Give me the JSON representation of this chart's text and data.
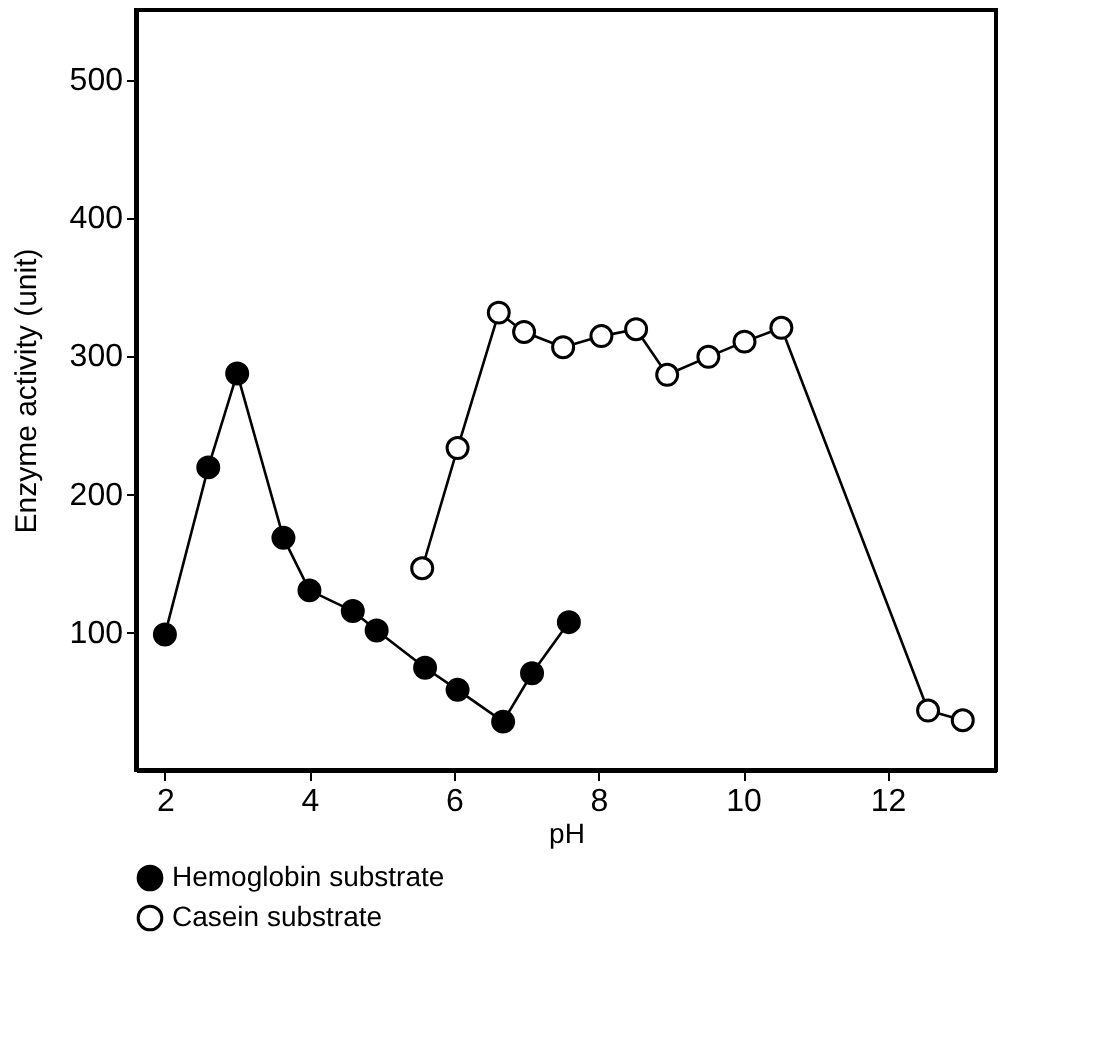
{
  "chart_data": {
    "type": "line",
    "xlabel": "pH",
    "ylabel": "Enzyme activity (unit)",
    "xlim": [
      1.6,
      13.5
    ],
    "xticks": [
      2,
      4,
      6,
      8,
      10,
      12
    ],
    "ylim": [
      0,
      550
    ],
    "yticks": [
      100,
      200,
      300,
      400,
      500
    ],
    "grid": false,
    "legend": "bottom",
    "marker": "circle",
    "line_style": "solid",
    "series": [
      {
        "name": "Hemoglobin substrate",
        "color": "#000000",
        "x": [
          2.0,
          2.6,
          3.0,
          3.64,
          4.0,
          4.6,
          4.93,
          5.6,
          6.05,
          6.68,
          7.08,
          7.59
        ],
        "values": [
          98,
          219,
          287,
          168,
          130,
          115,
          101,
          74,
          58,
          35,
          70,
          107
        ]
      },
      {
        "name": "Casein substrate",
        "color": "#000000",
        "x": [
          5.56,
          6.05,
          6.62,
          6.97,
          7.51,
          8.04,
          8.52,
          8.95,
          9.52,
          10.02,
          10.53,
          12.56,
          13.04
        ],
        "values": [
          146,
          233,
          331,
          317,
          306,
          314,
          319,
          286,
          299,
          310,
          320,
          43,
          36
        ]
      }
    ]
  }
}
